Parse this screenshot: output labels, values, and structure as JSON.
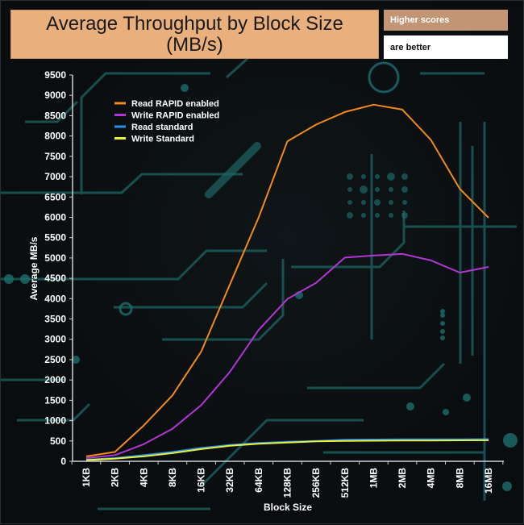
{
  "header": {
    "title_line1": "Average Throughput by Block Size",
    "title_line2": "(MB/s)",
    "note_top": "Higher scores",
    "note_bottom": "are better"
  },
  "colors": {
    "background": "#0b0e10",
    "circuit": "#1e6b6b",
    "title_bg": "#e9b07e",
    "axis": "#d0d0d0"
  },
  "chart_data": {
    "type": "line",
    "xlabel": "Block Size",
    "ylabel": "Average MB/s",
    "categories": [
      "1KB",
      "2KB",
      "4KB",
      "8KB",
      "16KB",
      "32KB",
      "64KB",
      "128KB",
      "256KB",
      "512KB",
      "1MB",
      "2MB",
      "4MB",
      "8MB",
      "16MB"
    ],
    "ylim": [
      0,
      9500
    ],
    "yticks": [
      0,
      500,
      1000,
      1500,
      2000,
      2500,
      3000,
      3500,
      4000,
      4500,
      5000,
      5500,
      6000,
      6500,
      7000,
      7500,
      8000,
      8500,
      9000,
      9500
    ],
    "legend_position": "top-left",
    "grid": false,
    "series": [
      {
        "name": "Read RAPID enabled",
        "color": "#f28a1c",
        "values": [
          120,
          230,
          880,
          1620,
          2700,
          4350,
          6000,
          7870,
          8280,
          8590,
          8770,
          8650,
          7900,
          6700,
          5990
        ]
      },
      {
        "name": "Write RAPID enabled",
        "color": "#b335d6",
        "values": [
          80,
          150,
          420,
          800,
          1380,
          2200,
          3230,
          3990,
          4390,
          5010,
          5060,
          5100,
          4940,
          4640,
          4780
        ]
      },
      {
        "name": "Read standard",
        "color": "#2d8cf0",
        "values": [
          40,
          80,
          150,
          230,
          330,
          400,
          450,
          480,
          500,
          530,
          535,
          540,
          540,
          540,
          545
        ]
      },
      {
        "name": "Write Standard",
        "color": "#e6f23a",
        "values": [
          30,
          65,
          120,
          200,
          300,
          380,
          430,
          460,
          490,
          500,
          505,
          510,
          512,
          515,
          518
        ]
      }
    ]
  }
}
